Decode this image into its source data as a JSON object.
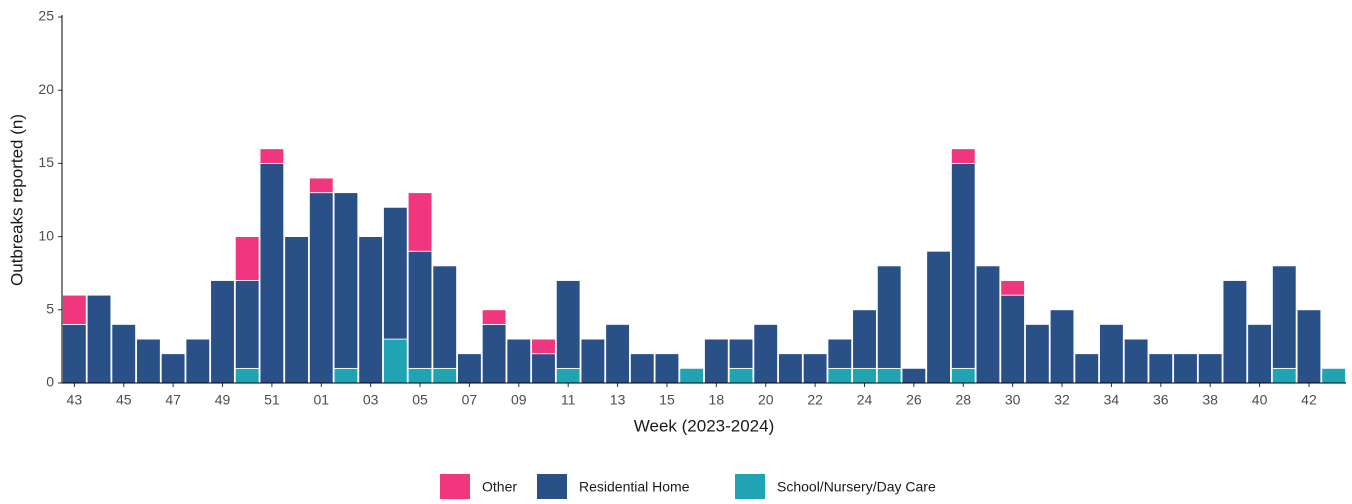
{
  "chart_data": {
    "type": "bar",
    "stacked": true,
    "x_label": "Week (2023-2024)",
    "y_label": "Outbreaks reported (n)",
    "categories": [
      "43",
      null,
      "45",
      null,
      "47",
      null,
      "49",
      null,
      "51",
      null,
      "01",
      null,
      "03",
      null,
      "05",
      null,
      "07",
      null,
      "09",
      null,
      "11",
      null,
      "13",
      null,
      "15",
      null,
      "18",
      null,
      "20",
      null,
      "22",
      null,
      "24",
      null,
      "26",
      null,
      "28",
      null,
      "30",
      null,
      "32",
      null,
      "34",
      null,
      "36",
      null,
      "38",
      null,
      "40",
      null,
      "42",
      null
    ],
    "series": [
      {
        "name": "Other",
        "color": "#f0367e",
        "values": [
          2,
          0,
          0,
          0,
          0,
          0,
          0,
          3,
          1,
          0,
          1,
          0,
          0,
          0,
          4,
          0,
          0,
          1,
          0,
          1,
          0,
          0,
          0,
          0,
          0,
          0,
          0,
          0,
          0,
          0,
          0,
          0,
          0,
          0,
          0,
          0,
          1,
          0,
          1,
          0,
          0,
          0,
          0,
          0,
          0,
          0,
          0,
          0,
          0,
          0,
          0,
          0
        ]
      },
      {
        "name": "Residential Home",
        "color": "#2a5088",
        "values": [
          4,
          6,
          4,
          3,
          2,
          3,
          7,
          6,
          15,
          10,
          13,
          12,
          10,
          9,
          8,
          7,
          2,
          4,
          3,
          2,
          6,
          3,
          4,
          2,
          2,
          0,
          3,
          2,
          4,
          2,
          2,
          2,
          4,
          7,
          1,
          9,
          14,
          8,
          6,
          4,
          5,
          2,
          4,
          3,
          2,
          2,
          2,
          7,
          4,
          7,
          5,
          0
        ]
      },
      {
        "name": "School/Nursery/Day Care",
        "color": "#20a4b4",
        "values": [
          0,
          0,
          0,
          0,
          0,
          0,
          0,
          1,
          0,
          0,
          0,
          1,
          0,
          3,
          1,
          1,
          0,
          0,
          0,
          0,
          1,
          0,
          0,
          0,
          0,
          1,
          0,
          1,
          0,
          0,
          0,
          1,
          1,
          1,
          0,
          0,
          1,
          0,
          0,
          0,
          0,
          0,
          0,
          0,
          0,
          0,
          0,
          0,
          0,
          1,
          0,
          1
        ]
      }
    ],
    "ylim": [
      0,
      25
    ],
    "yticks": [
      0,
      5,
      10,
      15,
      20,
      25
    ],
    "grid": false,
    "legend": "bottom"
  }
}
